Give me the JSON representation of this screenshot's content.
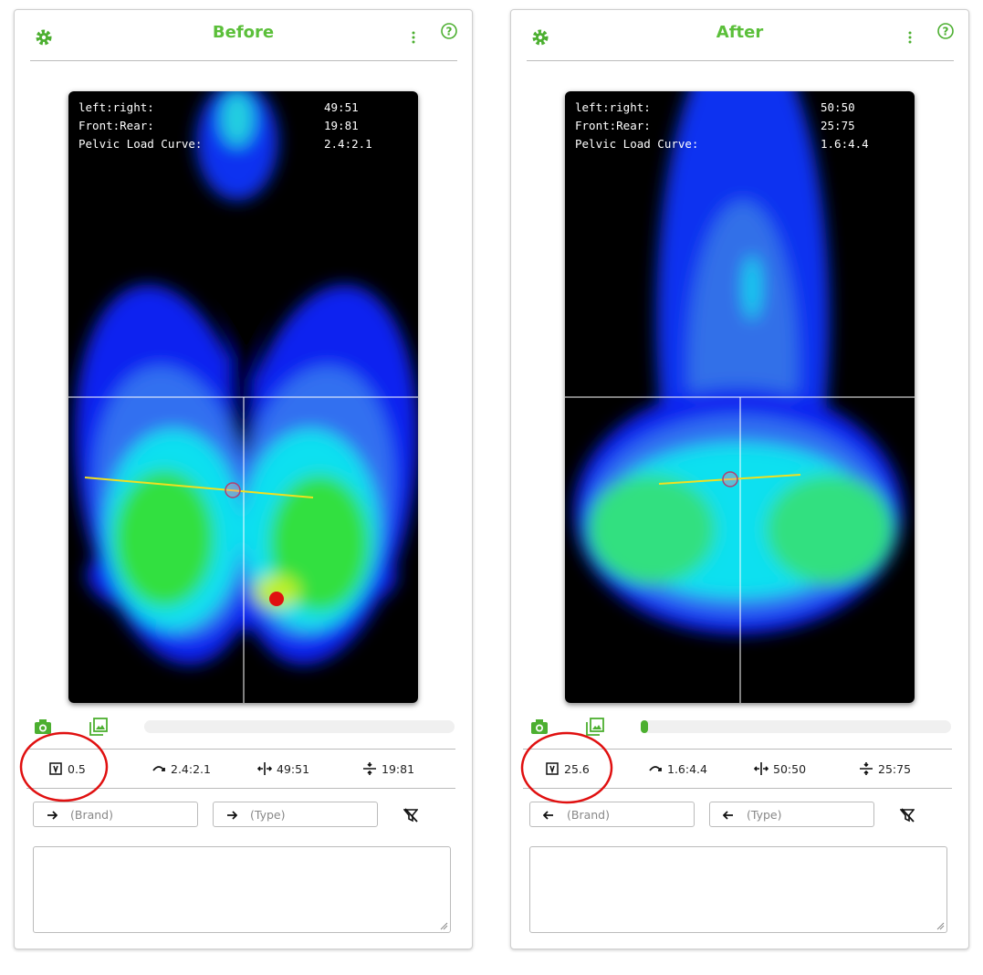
{
  "panels": [
    {
      "title": "Before",
      "overlay": [
        {
          "label": "left:right:",
          "value": "49:51"
        },
        {
          "label": "Front:Rear:",
          "value": "19:81"
        },
        {
          "label": "Pelvic Load Curve:",
          "value": "2.4:2.1"
        }
      ],
      "stats": [
        "0.5",
        "2.4:2.1",
        "49:51",
        "19:81"
      ],
      "inputs": [
        "(Brand)",
        "(Type)"
      ]
    },
    {
      "title": "After",
      "overlay": [
        {
          "label": "left:right:",
          "value": "50:50"
        },
        {
          "label": "Front:Rear:",
          "value": "25:75"
        },
        {
          "label": "Pelvic Load Curve:",
          "value": "1.6:4.4"
        }
      ],
      "stats": [
        "25.6",
        "1.6:4.4",
        "50:50",
        "25:75"
      ],
      "inputs": [
        "(Brand)",
        "(Type)"
      ]
    }
  ]
}
